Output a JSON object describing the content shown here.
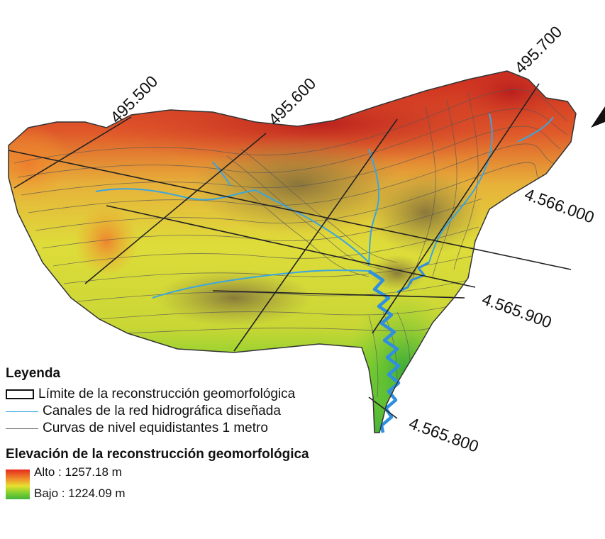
{
  "map": {
    "grid_labels": {
      "easting": [
        "495.500",
        "495.600",
        "495.700"
      ],
      "northing": [
        "4.566.000",
        "4.565.900",
        "4.565.800"
      ]
    },
    "colors": {
      "high": "#d8281e",
      "mid_high": "#f08a2a",
      "mid": "#e8e030",
      "low": "#43b33c",
      "channel": "#3aa6e0",
      "contour": "#5a5a5a",
      "boundary": "#111111"
    }
  },
  "legend": {
    "title": "Leyenda",
    "items": [
      {
        "label": "Límite de la reconstrucción geomorfológica",
        "symbol": "box"
      },
      {
        "label": "Canales de la red hidrográfica diseñada",
        "symbol": "blue-line"
      },
      {
        "label": "Curvas de nivel equidistantes 1 metro",
        "symbol": "gray-line"
      }
    ],
    "elevation_title": "Elevación de la reconstrucción geomorfológica",
    "high_label": "Alto : 1257.18 m",
    "low_label": "Bajo : 1224.09 m"
  }
}
